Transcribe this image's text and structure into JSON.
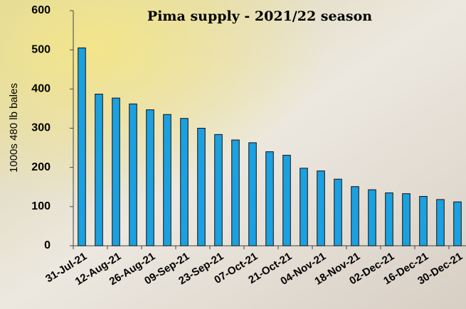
{
  "chart_data": {
    "type": "bar",
    "title": "Pima supply - 2021/22 season",
    "y_label": "1000s 480 lb bales",
    "categories": [
      "31-Jul-21",
      null,
      "12-Aug-21",
      null,
      "26-Aug-21",
      null,
      "09-Sep-21",
      null,
      "23-Sep-21",
      null,
      "07-Oct-21",
      null,
      "21-Oct-21",
      null,
      "04-Nov-21",
      null,
      "18-Nov-21",
      null,
      "02-Dec-21",
      null,
      "16-Dec-21",
      null,
      "30-Dec-21"
    ],
    "values": [
      505,
      387,
      377,
      362,
      347,
      335,
      325,
      300,
      284,
      270,
      263,
      240,
      231,
      198,
      191,
      170,
      151,
      143,
      135,
      133,
      126,
      118,
      112
    ],
    "color": "#1ba0e0",
    "ylim": [
      0,
      600
    ],
    "yticks": [
      0,
      100,
      200,
      300,
      400,
      500,
      600
    ],
    "grid": false
  }
}
